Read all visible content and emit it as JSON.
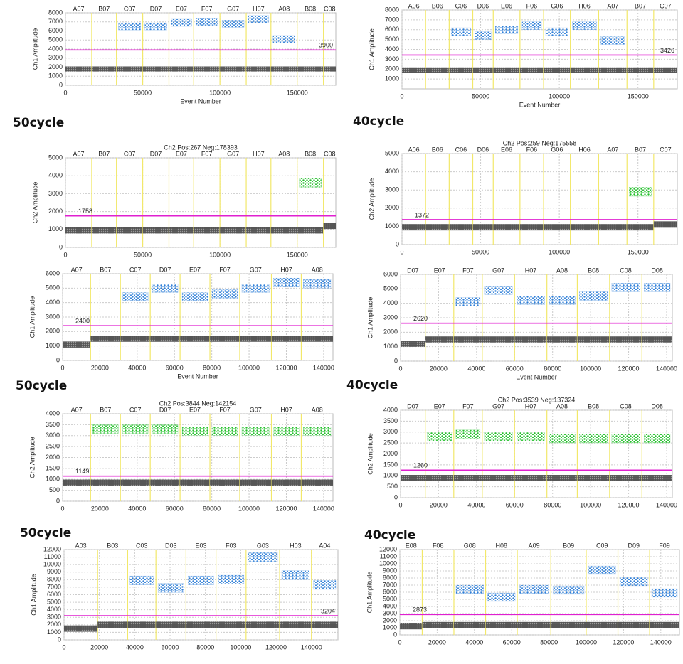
{
  "annotations": [
    "50cycle",
    "40cycle",
    "50cycle",
    "40cycle",
    "50cycle",
    "40cycle"
  ],
  "chart_data": [
    {
      "type": "scatter",
      "ylabel": "Ch1 Amplitude",
      "xlabel": "Event Number",
      "color": "#2f7fd8",
      "categories": [
        "A07",
        "B07",
        "C07",
        "D07",
        "E07",
        "F07",
        "G07",
        "H07",
        "A08",
        "B08",
        "C08"
      ],
      "x": [
        0,
        17000,
        33000,
        50000,
        67000,
        83000,
        100000,
        117000,
        133000,
        150000,
        167000
      ],
      "values": [
        null,
        null,
        6500,
        6500,
        6900,
        7000,
        6800,
        7300,
        5100,
        null,
        null
      ],
      "negative": [
        1800,
        1800,
        1800,
        1800,
        1800,
        1800,
        1800,
        1800,
        1800,
        1800,
        1800
      ],
      "threshold": 3900,
      "xlim": [
        0,
        175000
      ],
      "ylim": [
        0,
        8000
      ],
      "xticks": [
        0,
        50000,
        100000,
        150000
      ],
      "yticks": [
        0,
        1000,
        2000,
        3000,
        4000,
        5000,
        6000,
        7000,
        8000
      ],
      "grid": true
    },
    {
      "type": "scatter",
      "ylabel": "Ch1 Amplitude",
      "xlabel": "Event Number",
      "color": "#2f7fd8",
      "categories": [
        "A06",
        "B06",
        "C06",
        "D06",
        "E06",
        "F06",
        "G06",
        "H06",
        "A07",
        "B07",
        "C07"
      ],
      "x": [
        0,
        15000,
        30000,
        45000,
        58000,
        75000,
        90000,
        107000,
        125000,
        143000,
        160000
      ],
      "values": [
        null,
        null,
        5800,
        5400,
        6000,
        6400,
        5800,
        6400,
        4900,
        null,
        null
      ],
      "negative": [
        1900,
        1900,
        1900,
        1900,
        1900,
        1900,
        1900,
        1900,
        1900,
        1900,
        1900
      ],
      "threshold": 3426,
      "xlim": [
        0,
        175000
      ],
      "ylim": [
        0,
        8000
      ],
      "xticks": [
        0,
        50000,
        100000,
        150000
      ],
      "yticks": [
        1000,
        2000,
        3000,
        4000,
        5000,
        6000,
        7000,
        8000
      ],
      "grid": true
    },
    {
      "type": "scatter",
      "title": "Ch2 Pos:267 Neg:178393",
      "ylabel": "Ch2 Amplitude",
      "color": "#22c02a",
      "categories": [
        "A07",
        "B07",
        "C07",
        "D07",
        "E07",
        "F07",
        "G07",
        "H07",
        "A08",
        "B08",
        "C08"
      ],
      "x": [
        0,
        17000,
        33000,
        50000,
        67000,
        83000,
        100000,
        117000,
        133000,
        150000,
        167000
      ],
      "values": [
        null,
        null,
        null,
        null,
        null,
        null,
        null,
        null,
        null,
        3600,
        null
      ],
      "negative": [
        950,
        950,
        950,
        950,
        950,
        950,
        950,
        950,
        950,
        950,
        1200
      ],
      "threshold": 1758,
      "xlim": [
        0,
        175000
      ],
      "ylim": [
        0,
        5000
      ],
      "xticks": [
        0,
        50000,
        100000,
        150000
      ],
      "yticks": [
        0,
        1000,
        2000,
        3000,
        4000,
        5000
      ],
      "grid": true
    },
    {
      "type": "scatter",
      "title": "Ch2 Pos:259 Neg:175558",
      "ylabel": "Ch2 Amplitude",
      "color": "#22c02a",
      "categories": [
        "A06",
        "B06",
        "C06",
        "D06",
        "E06",
        "F06",
        "G06",
        "H06",
        "A07",
        "B07",
        "C07"
      ],
      "x": [
        0,
        15000,
        30000,
        45000,
        58000,
        75000,
        90000,
        107000,
        125000,
        143000,
        160000
      ],
      "values": [
        null,
        null,
        null,
        null,
        null,
        null,
        null,
        null,
        null,
        2900,
        null
      ],
      "negative": [
        950,
        950,
        950,
        950,
        950,
        950,
        950,
        950,
        950,
        950,
        1100
      ],
      "threshold": 1372,
      "xlim": [
        0,
        175000
      ],
      "ylim": [
        0,
        5000
      ],
      "xticks": [
        0,
        50000,
        100000,
        150000
      ],
      "yticks": [
        0,
        1000,
        2000,
        3000,
        4000,
        5000
      ],
      "grid": true
    },
    {
      "type": "scatter",
      "ylabel": "Ch1 Amplitude",
      "xlabel": "Event Number",
      "color": "#2f7fd8",
      "categories": [
        "A07",
        "B07",
        "C07",
        "D07",
        "E07",
        "F07",
        "G07",
        "H07",
        "A08"
      ],
      "x": [
        0,
        15000,
        31000,
        47000,
        63000,
        79000,
        95000,
        112000,
        128000
      ],
      "values": [
        null,
        null,
        4400,
        5000,
        4400,
        4600,
        5000,
        5400,
        5300
      ],
      "negative": [
        1100,
        1500,
        1500,
        1500,
        1500,
        1500,
        1500,
        1500,
        1500
      ],
      "threshold": 2400,
      "xlim": [
        0,
        145000
      ],
      "ylim": [
        0,
        6000
      ],
      "xticks": [
        0,
        20000,
        40000,
        60000,
        80000,
        100000,
        120000,
        140000
      ],
      "yticks": [
        0,
        1000,
        2000,
        3000,
        4000,
        5000,
        6000
      ],
      "grid": true
    },
    {
      "type": "scatter",
      "ylabel": "Ch1 Amplitude",
      "xlabel": "Event Number",
      "color": "#2f7fd8",
      "categories": [
        "D07",
        "E07",
        "F07",
        "G07",
        "H07",
        "A08",
        "B08",
        "C08",
        "D08"
      ],
      "x": [
        0,
        13000,
        28000,
        43000,
        60000,
        77000,
        93000,
        110000,
        127000
      ],
      "values": [
        null,
        null,
        4100,
        4900,
        4200,
        4200,
        4500,
        5100,
        5100
      ],
      "negative": [
        1200,
        1500,
        1500,
        1500,
        1500,
        1500,
        1500,
        1500,
        1500
      ],
      "threshold": 2620,
      "xlim": [
        0,
        143000
      ],
      "ylim": [
        0,
        6000
      ],
      "xticks": [
        0,
        20000,
        40000,
        60000,
        80000,
        100000,
        120000,
        140000
      ],
      "yticks": [
        0,
        1000,
        2000,
        3000,
        4000,
        5000,
        6000
      ],
      "grid": true
    },
    {
      "type": "scatter",
      "title": "Ch2 Pos:3844 Neg:142154",
      "ylabel": "Ch2 Amplitude",
      "color": "#22c02a",
      "categories": [
        "A07",
        "B07",
        "C07",
        "D07",
        "E07",
        "F07",
        "G07",
        "H07",
        "A08"
      ],
      "x": [
        0,
        15000,
        31000,
        47000,
        63000,
        79000,
        95000,
        112000,
        128000
      ],
      "values": [
        null,
        3300,
        3300,
        3300,
        3200,
        3200,
        3200,
        3200,
        3200
      ],
      "negative": [
        850,
        850,
        850,
        850,
        850,
        850,
        850,
        850,
        850
      ],
      "threshold": 1149,
      "xlim": [
        0,
        145000
      ],
      "ylim": [
        0,
        4000
      ],
      "xticks": [
        0,
        20000,
        40000,
        60000,
        80000,
        100000,
        120000,
        140000
      ],
      "yticks": [
        0,
        500,
        1000,
        1500,
        2000,
        2500,
        3000,
        3500,
        4000
      ],
      "grid": true
    },
    {
      "type": "scatter",
      "title": "Ch2 Pos:3539 Neg:137324",
      "ylabel": "Ch2 Amplitude",
      "color": "#22c02a",
      "categories": [
        "D07",
        "E07",
        "F07",
        "G07",
        "H07",
        "A08",
        "B08",
        "C08",
        "D08"
      ],
      "x": [
        0,
        13000,
        28000,
        43000,
        60000,
        77000,
        93000,
        110000,
        127000
      ],
      "values": [
        null,
        2800,
        2900,
        2800,
        2800,
        2700,
        2700,
        2700,
        2700
      ],
      "negative": [
        900,
        900,
        900,
        900,
        900,
        900,
        900,
        900,
        900
      ],
      "threshold": 1260,
      "xlim": [
        0,
        143000
      ],
      "ylim": [
        0,
        4000
      ],
      "xticks": [
        0,
        20000,
        40000,
        60000,
        80000,
        100000,
        120000,
        140000
      ],
      "yticks": [
        0,
        500,
        1000,
        1500,
        2000,
        2500,
        3000,
        3500,
        4000
      ],
      "grid": true
    },
    {
      "type": "scatter",
      "ylabel": "Ch1 Amplitude",
      "color": "#2f7fd8",
      "categories": [
        "A03",
        "B03",
        "C03",
        "D03",
        "E03",
        "F03",
        "G03",
        "H03",
        "A04"
      ],
      "x": [
        0,
        19000,
        36000,
        52000,
        69000,
        86000,
        103000,
        122000,
        140000
      ],
      "values": [
        null,
        null,
        7900,
        6900,
        7900,
        8000,
        11000,
        8600,
        7300
      ],
      "negative": [
        1500,
        2000,
        2000,
        2000,
        2000,
        2000,
        2000,
        2000,
        2000
      ],
      "threshold": 3204,
      "xlim": [
        0,
        155000
      ],
      "ylim": [
        0,
        12000
      ],
      "xticks": [
        0,
        20000,
        40000,
        60000,
        80000,
        100000,
        120000,
        140000
      ],
      "yticks": [
        0,
        1000,
        2000,
        3000,
        4000,
        5000,
        6000,
        7000,
        8000,
        9000,
        10000,
        11000,
        12000
      ],
      "grid": true
    },
    {
      "type": "scatter",
      "ylabel": "Ch1 Amplitude",
      "color": "#2f7fd8",
      "categories": [
        "E08",
        "F08",
        "G08",
        "H08",
        "A09",
        "B09",
        "C09",
        "D09",
        "F09"
      ],
      "x": [
        0,
        12000,
        29000,
        46000,
        63000,
        81000,
        100000,
        117000,
        134000
      ],
      "values": [
        null,
        null,
        6400,
        5300,
        6400,
        6300,
        9100,
        7500,
        5900
      ],
      "negative": [
        1200,
        1400,
        1400,
        1400,
        1400,
        1400,
        1400,
        1400,
        1400
      ],
      "threshold": 2873,
      "xlim": [
        0,
        150000
      ],
      "ylim": [
        0,
        12000
      ],
      "xticks": [
        0,
        20000,
        40000,
        60000,
        80000,
        100000,
        120000,
        140000
      ],
      "yticks": [
        0,
        1000,
        2000,
        3000,
        4000,
        5000,
        6000,
        7000,
        8000,
        9000,
        10000,
        11000,
        12000
      ],
      "grid": true
    }
  ]
}
